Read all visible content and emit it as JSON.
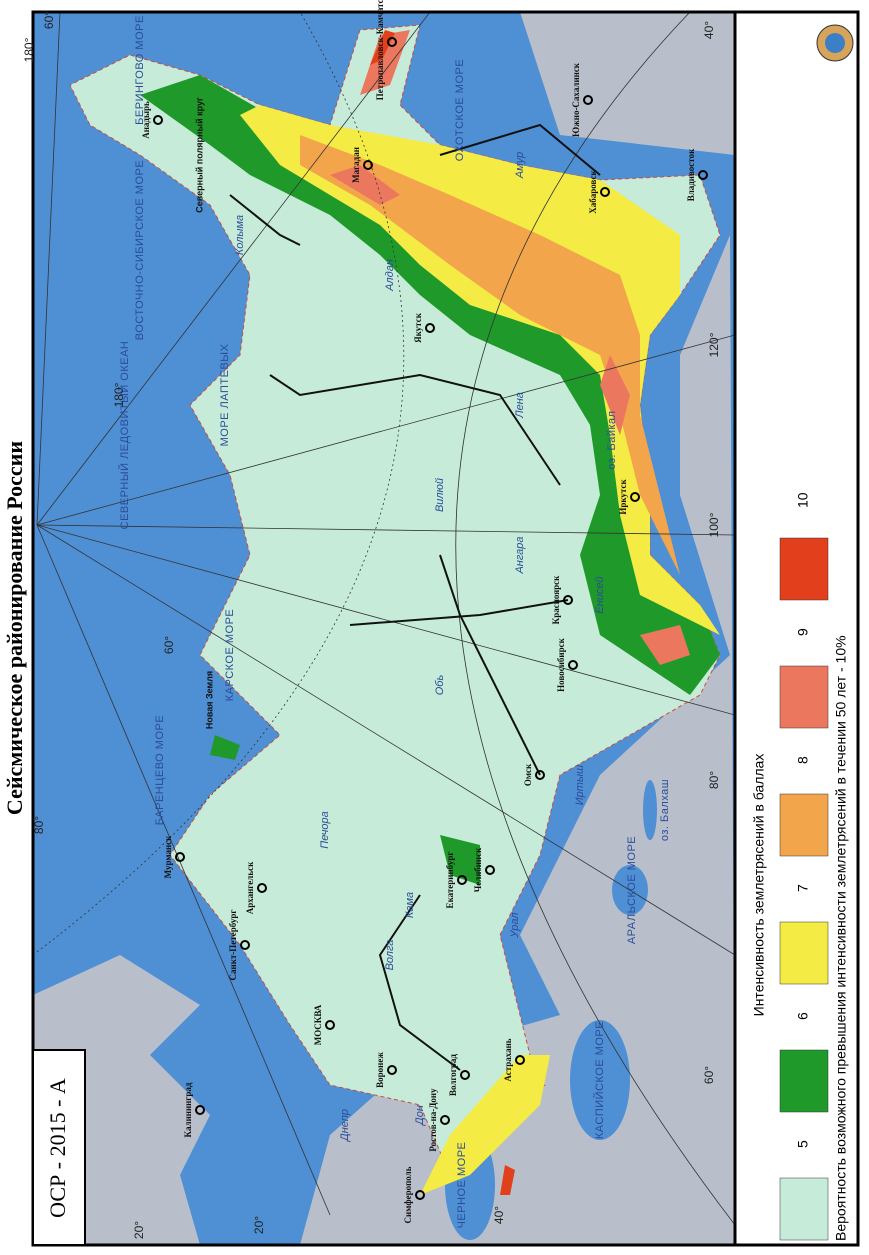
{
  "title": "Сейсмическое районирование России",
  "badge": "ОСР - 2015 - А",
  "legend": {
    "title": "Интенсивность землетрясений в баллах",
    "items": [
      {
        "label": "5",
        "color": "#c6ecd9"
      },
      {
        "label": "6",
        "color": "#1f9a2a"
      },
      {
        "label": "7",
        "color": "#f4ec44"
      },
      {
        "label": "8",
        "color": "#f3a54c"
      },
      {
        "label": "9",
        "color": "#ec775f"
      },
      {
        "label": "10",
        "color": "#e2401c"
      }
    ],
    "note": "Вероятность возможного превышения интенсивности землетрясений в течении 50 лет - 10%"
  },
  "map": {
    "cities": [
      "Калининград",
      "Санкт-Петербург",
      "Мурманск",
      "Архангельск",
      "МОСКВА",
      "Воронеж",
      "Ростов-на-Дону",
      "Волгоград",
      "Астрахань",
      "Симферополь",
      "Екатеринбург",
      "Челябинск",
      "Омск",
      "Новосибирск",
      "Красноярск",
      "Иркутск",
      "Якутск",
      "Магадан",
      "Анадырь",
      "Петропавловск-Камчатский",
      "Южно-Сахалинск",
      "Хабаровск",
      "Владивосток"
    ],
    "water": [
      "ЧЕРНОЕ МОРЕ",
      "КАСПИЙСКОЕ МОРЕ",
      "АРАЛЬСКОЕ МОРЕ",
      "оз. Балхаш",
      "БАРЕНЦЕВО МОРЕ",
      "КАРСКОЕ МОРЕ",
      "МОРЕ ЛАПТЕВЫХ",
      "СЕВЕРНЫЙ ЛЕДОВИТЫЙ ОКЕАН",
      "ВОСТОЧНО-СИБИРСКОЕ МОРЕ",
      "БЕРИНГОВО МОРЕ",
      "ОХОТСКОЕ МОРЕ",
      "оз. Байкал",
      "Новая Земля",
      "Северный полярный круг"
    ],
    "rivers": [
      "Днепр",
      "Дон",
      "Волга",
      "Кама",
      "Урал",
      "Печора",
      "Обь",
      "Иртыш",
      "Енисей",
      "Ангара",
      "Лена",
      "Вилюй",
      "Алдан",
      "Колыма",
      "Амур"
    ],
    "graticule": [
      "20°",
      "40°",
      "60°",
      "80°",
      "100°",
      "120°",
      "180°",
      "40°",
      "60°",
      "80°",
      "20°",
      "40°",
      "60°",
      "180°"
    ]
  }
}
